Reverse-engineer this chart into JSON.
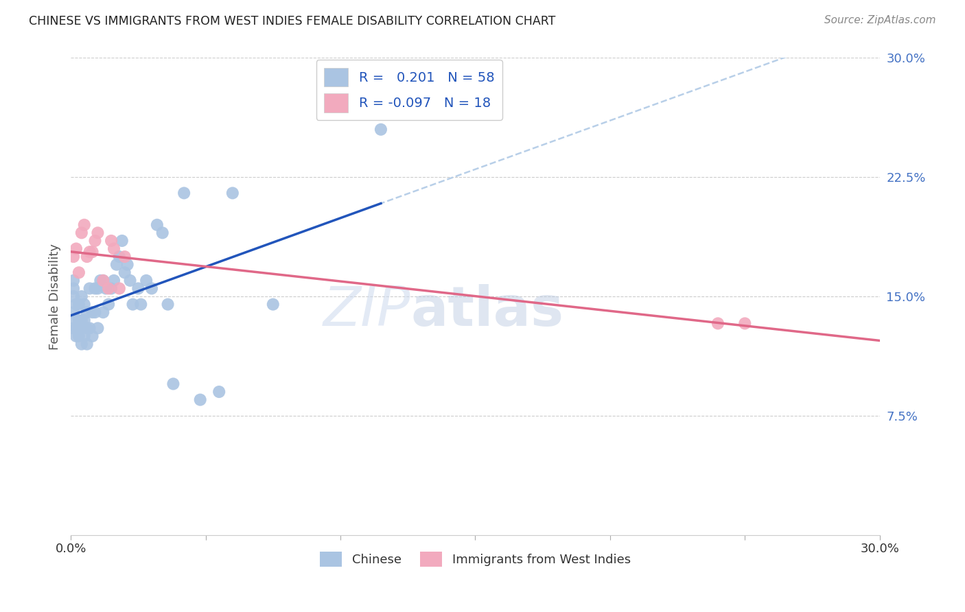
{
  "title": "CHINESE VS IMMIGRANTS FROM WEST INDIES FEMALE DISABILITY CORRELATION CHART",
  "source": "Source: ZipAtlas.com",
  "ylabel": "Female Disability",
  "xlim": [
    0.0,
    0.3
  ],
  "ylim": [
    0.0,
    0.3
  ],
  "yticks": [
    0.075,
    0.15,
    0.225,
    0.3
  ],
  "ytick_labels": [
    "7.5%",
    "15.0%",
    "22.5%",
    "30.0%"
  ],
  "xticks": [
    0.0,
    0.05,
    0.1,
    0.15,
    0.2,
    0.25,
    0.3
  ],
  "xtick_labels": [
    "0.0%",
    "",
    "",
    "",
    "",
    "",
    "30.0%"
  ],
  "chinese_color": "#aac4e2",
  "west_indies_color": "#f2aabe",
  "trend_chinese_color": "#2255bb",
  "trend_west_indies_color": "#e06888",
  "trend_dashed_color": "#b8cfe8",
  "R_chinese": 0.201,
  "N_chinese": 58,
  "R_west_indies": -0.097,
  "N_west_indies": 18,
  "watermark_zip": "ZIP",
  "watermark_atlas": "atlas",
  "chinese_x": [
    0.001,
    0.001,
    0.001,
    0.001,
    0.001,
    0.002,
    0.002,
    0.002,
    0.002,
    0.003,
    0.003,
    0.003,
    0.003,
    0.004,
    0.004,
    0.004,
    0.005,
    0.005,
    0.005,
    0.006,
    0.006,
    0.006,
    0.007,
    0.007,
    0.008,
    0.008,
    0.009,
    0.009,
    0.01,
    0.01,
    0.011,
    0.012,
    0.012,
    0.013,
    0.014,
    0.015,
    0.016,
    0.017,
    0.018,
    0.019,
    0.02,
    0.021,
    0.022,
    0.023,
    0.025,
    0.026,
    0.028,
    0.03,
    0.032,
    0.034,
    0.036,
    0.038,
    0.042,
    0.048,
    0.055,
    0.06,
    0.075,
    0.115
  ],
  "chinese_y": [
    0.13,
    0.14,
    0.15,
    0.155,
    0.16,
    0.125,
    0.13,
    0.135,
    0.145,
    0.125,
    0.13,
    0.135,
    0.145,
    0.12,
    0.135,
    0.15,
    0.125,
    0.135,
    0.145,
    0.12,
    0.13,
    0.14,
    0.13,
    0.155,
    0.125,
    0.14,
    0.14,
    0.155,
    0.13,
    0.155,
    0.16,
    0.14,
    0.16,
    0.155,
    0.145,
    0.155,
    0.16,
    0.17,
    0.175,
    0.185,
    0.165,
    0.17,
    0.16,
    0.145,
    0.155,
    0.145,
    0.16,
    0.155,
    0.195,
    0.19,
    0.145,
    0.095,
    0.215,
    0.085,
    0.09,
    0.215,
    0.145,
    0.255
  ],
  "west_indies_x": [
    0.001,
    0.002,
    0.003,
    0.004,
    0.005,
    0.006,
    0.007,
    0.008,
    0.009,
    0.01,
    0.012,
    0.014,
    0.015,
    0.016,
    0.018,
    0.02,
    0.24,
    0.25
  ],
  "west_indies_y": [
    0.175,
    0.18,
    0.165,
    0.19,
    0.195,
    0.175,
    0.178,
    0.178,
    0.185,
    0.19,
    0.16,
    0.155,
    0.185,
    0.18,
    0.155,
    0.175,
    0.133,
    0.133
  ],
  "legend_r_color": "#2255bb",
  "legend_n_color": "#2255bb",
  "tick_color": "#aaaaaa",
  "grid_color": "#cccccc",
  "spine_color": "#cccccc",
  "title_color": "#222222",
  "source_color": "#888888",
  "ylabel_color": "#555555",
  "ytick_color": "#4472c4"
}
